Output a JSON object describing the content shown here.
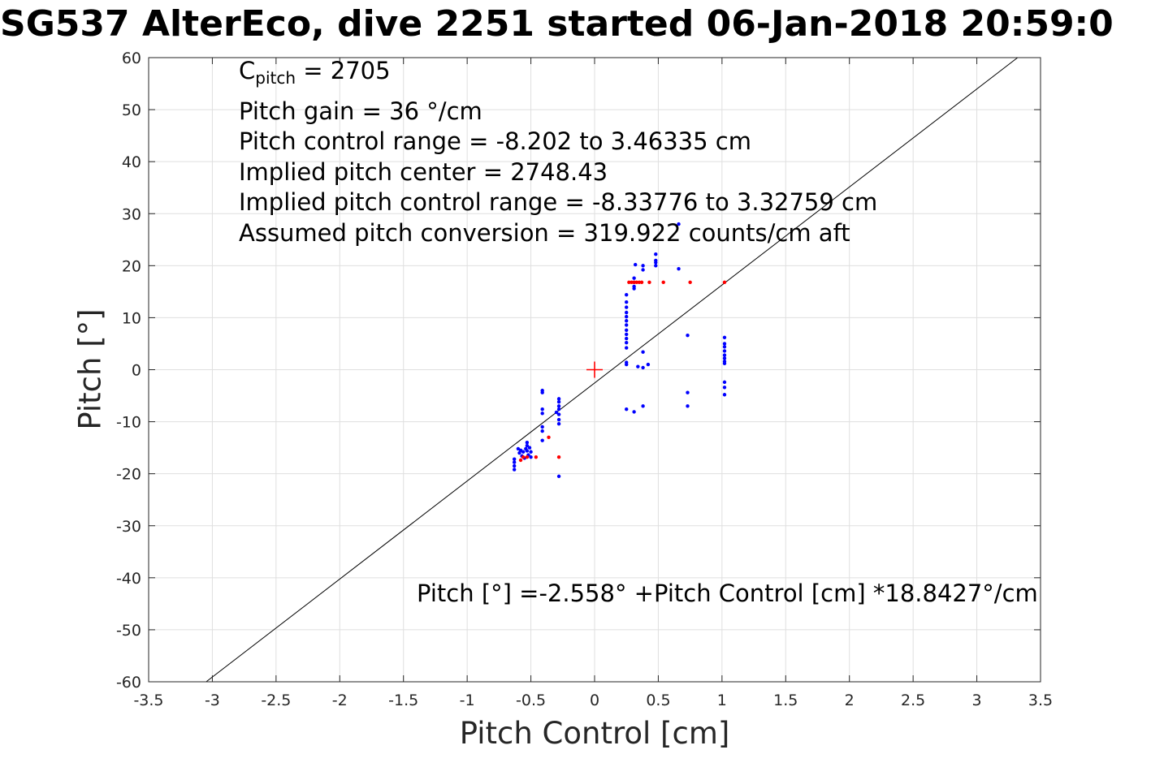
{
  "title": "SG537 AlterEco, dive 2251 started 06-Jan-2018 20:59:0",
  "annotations": {
    "c_pitch_symbol": "C",
    "c_pitch_subscript": "pitch",
    "c_pitch_value": " = 2705",
    "pitch_gain": "Pitch gain = 36 °/cm",
    "pitch_control_range": "Pitch control range = -8.202 to 3.46335 cm",
    "implied_center": "Implied pitch center = 2748.43",
    "implied_range": "Implied pitch control range = -8.33776 to 3.32759 cm",
    "assumed_conversion": "Assumed pitch conversion = 319.922 counts/cm aft",
    "fit_equation": "Pitch [°] =-2.558° +Pitch Control [cm] *18.8427°/cm"
  },
  "chart_data": {
    "type": "scatter",
    "xlabel": "Pitch Control [cm]",
    "ylabel": "Pitch [°]",
    "xlim": [
      -3.5,
      3.5
    ],
    "ylim": [
      -60,
      60
    ],
    "xticks": [
      -3.5,
      -3,
      -2.5,
      -2,
      -1.5,
      -1,
      -0.5,
      0,
      0.5,
      1,
      1.5,
      2,
      2.5,
      3,
      3.5
    ],
    "xtick_labels": [
      "-3.5",
      "-3",
      "-2.5",
      "-2",
      "-1.5",
      "-1",
      "-0.5",
      "0",
      "0.5",
      "1",
      "1.5",
      "2",
      "2.5",
      "3",
      "3.5"
    ],
    "yticks": [
      -60,
      -50,
      -40,
      -30,
      -20,
      -10,
      0,
      10,
      20,
      30,
      40,
      50,
      60
    ],
    "ytick_labels": [
      "-60",
      "-50",
      "-40",
      "-30",
      "-20",
      "-10",
      "0",
      "10",
      "20",
      "30",
      "40",
      "50",
      "60"
    ],
    "grid": true,
    "colors": {
      "series_blue": "#0000ff",
      "series_red": "#ff0000",
      "fit_line": "#000000",
      "center_marker": "#ff0000"
    },
    "fit_line": {
      "intercept": -2.558,
      "slope": 18.8427
    },
    "center_marker": {
      "x": 0,
      "y": 0,
      "marker": "+"
    },
    "series": [
      {
        "color": "#0000ff",
        "points": [
          [
            -0.63,
            -17.2
          ],
          [
            -0.63,
            -17.8
          ],
          [
            -0.63,
            -18.5
          ],
          [
            -0.63,
            -19.2
          ],
          [
            -0.6,
            -15.2
          ],
          [
            -0.59,
            -16.0
          ],
          [
            -0.58,
            -15.5
          ],
          [
            -0.57,
            -16.6
          ],
          [
            -0.56,
            -15.8
          ],
          [
            -0.55,
            -17.0
          ],
          [
            -0.54,
            -15.2
          ],
          [
            -0.53,
            -14.0
          ],
          [
            -0.53,
            -14.6
          ],
          [
            -0.53,
            -15.6
          ],
          [
            -0.52,
            -16.4
          ],
          [
            -0.51,
            -15.0
          ],
          [
            -0.5,
            -15.8
          ],
          [
            -0.5,
            -16.8
          ],
          [
            -0.41,
            -4.0
          ],
          [
            -0.41,
            -4.4
          ],
          [
            -0.41,
            -7.6
          ],
          [
            -0.41,
            -8.4
          ],
          [
            -0.41,
            -11.0
          ],
          [
            -0.41,
            -11.8
          ],
          [
            -0.41,
            -13.6
          ],
          [
            -0.3,
            -8.2
          ],
          [
            -0.28,
            -5.6
          ],
          [
            -0.28,
            -6.2
          ],
          [
            -0.28,
            -7.0
          ],
          [
            -0.28,
            -7.6
          ],
          [
            -0.28,
            -8.6
          ],
          [
            -0.28,
            -9.6
          ],
          [
            -0.28,
            -10.4
          ],
          [
            -0.28,
            -20.5
          ],
          [
            0.25,
            14.4
          ],
          [
            0.25,
            13.0
          ],
          [
            0.25,
            12.0
          ],
          [
            0.25,
            11.0
          ],
          [
            0.25,
            10.2
          ],
          [
            0.25,
            9.4
          ],
          [
            0.25,
            8.6
          ],
          [
            0.25,
            7.6
          ],
          [
            0.25,
            6.8
          ],
          [
            0.25,
            6.0
          ],
          [
            0.25,
            5.2
          ],
          [
            0.25,
            4.2
          ],
          [
            0.25,
            1.4
          ],
          [
            0.25,
            1.0
          ],
          [
            0.25,
            -7.6
          ],
          [
            0.31,
            17.6
          ],
          [
            0.31,
            16.8
          ],
          [
            0.31,
            16.0
          ],
          [
            0.31,
            15.6
          ],
          [
            0.31,
            -8.1
          ],
          [
            0.32,
            20.2
          ],
          [
            0.34,
            0.6
          ],
          [
            0.38,
            20.0
          ],
          [
            0.38,
            19.2
          ],
          [
            0.38,
            3.4
          ],
          [
            0.38,
            0.4
          ],
          [
            0.38,
            -7.0
          ],
          [
            0.42,
            1.0
          ],
          [
            0.48,
            22.2
          ],
          [
            0.48,
            21.0
          ],
          [
            0.48,
            20.6
          ],
          [
            0.48,
            20.0
          ],
          [
            0.66,
            28.0
          ],
          [
            0.66,
            19.4
          ],
          [
            0.73,
            6.6
          ],
          [
            0.73,
            -4.4
          ],
          [
            0.73,
            -7.0
          ],
          [
            1.02,
            6.2
          ],
          [
            1.02,
            5.0
          ],
          [
            1.02,
            4.4
          ],
          [
            1.02,
            3.6
          ],
          [
            1.02,
            2.8
          ],
          [
            1.02,
            2.2
          ],
          [
            1.02,
            1.6
          ],
          [
            1.02,
            1.2
          ],
          [
            1.02,
            -2.4
          ],
          [
            1.02,
            -3.4
          ],
          [
            1.02,
            -4.8
          ]
        ]
      },
      {
        "color": "#ff0000",
        "points": [
          [
            -0.58,
            -17.4
          ],
          [
            -0.56,
            -16.8
          ],
          [
            -0.53,
            -16.8
          ],
          [
            -0.46,
            -16.8
          ],
          [
            -0.36,
            -13.0
          ],
          [
            -0.28,
            -16.8
          ],
          [
            0.27,
            16.8
          ],
          [
            0.29,
            16.8
          ],
          [
            0.31,
            16.8
          ],
          [
            0.33,
            16.8
          ],
          [
            0.35,
            16.8
          ],
          [
            0.37,
            16.8
          ],
          [
            0.43,
            16.8
          ],
          [
            0.54,
            16.8
          ],
          [
            0.75,
            16.8
          ],
          [
            1.02,
            16.8
          ]
        ]
      }
    ]
  }
}
